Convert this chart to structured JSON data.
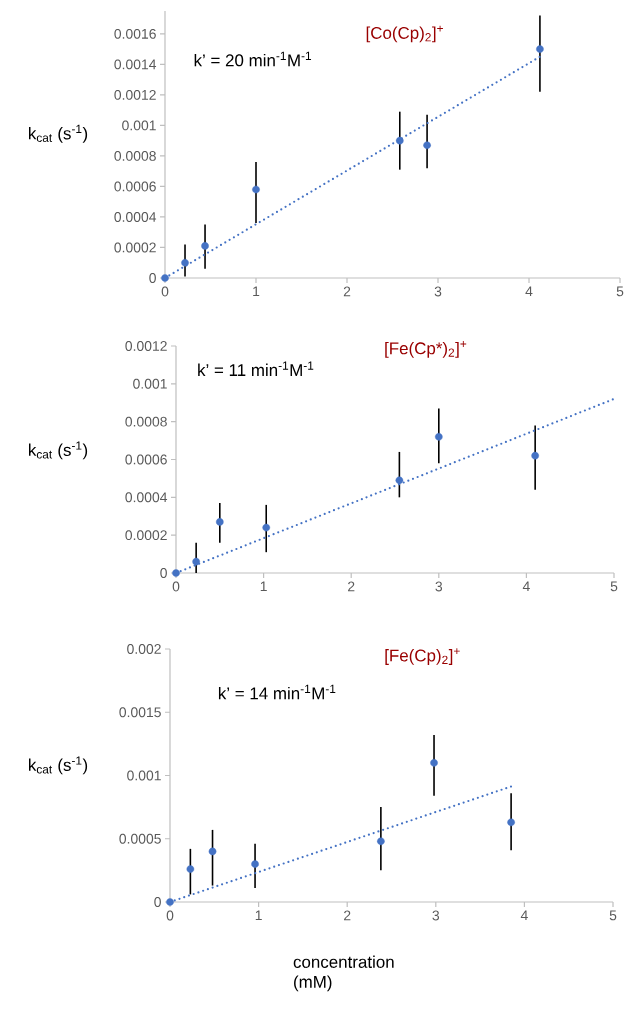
{
  "chart_data": [
    {
      "type": "scatter",
      "title": "[Co(Cp)$_{2}$]$^{+}$",
      "ylabel": "k$_{cat}$  (s$^{-1}$)",
      "annotations": [
        "k’ = 20 min$^{-1}$M$^{-1}$"
      ],
      "xlim": [
        0,
        5
      ],
      "xticks": [
        0,
        1,
        2,
        3,
        4,
        5
      ],
      "ylim": [
        0,
        0.00175
      ],
      "yticks": [
        0,
        0.0002,
        0.0004,
        0.0006,
        0.0008,
        0.001,
        0.0012,
        0.0014,
        0.0016
      ],
      "series": [
        {
          "color": "#4472c4",
          "marker": "circle",
          "x": [
            0,
            0.22,
            0.44,
            1.0,
            2.58,
            2.88,
            4.12
          ],
          "values": [
            0,
            0.0001,
            0.00021,
            0.00058,
            0.0009,
            0.00087,
            0.0015
          ],
          "errors": [
            null,
            [
              1e-05,
              0.00022
            ],
            [
              6e-05,
              0.00035
            ],
            [
              0.00036,
              0.00076
            ],
            [
              0.00071,
              0.00109
            ],
            [
              0.00072,
              0.00107
            ],
            [
              0.00122,
              0.00172
            ]
          ]
        },
        {
          "type": "line",
          "color": "#4472c4",
          "marker": "none",
          "line_style": "dotted",
          "x": [
            0,
            4.12
          ],
          "values": [
            0,
            0.00145
          ]
        }
      ]
    },
    {
      "type": "scatter",
      "title": "[Fe(Cp*)$_{2}$]$^{+}$",
      "ylabel": "k$_{cat}$  (s$^{-1}$)",
      "annotations": [
        "k’ = 11 min$^{-1}$M$^{-1}$"
      ],
      "xlim": [
        0,
        5
      ],
      "xticks": [
        0,
        1,
        2,
        3,
        4,
        5
      ],
      "ylim": [
        0,
        0.0012
      ],
      "yticks": [
        0,
        0.0002,
        0.0004,
        0.0006,
        0.0008,
        0.001,
        0.0012
      ],
      "series": [
        {
          "color": "#4472c4",
          "marker": "circle",
          "x": [
            0,
            0.23,
            0.5,
            1.03,
            2.55,
            3.0,
            4.1
          ],
          "values": [
            0,
            6e-05,
            0.00027,
            0.00024,
            0.00049,
            0.00072,
            0.00062
          ],
          "errors": [
            null,
            [
              0,
              0.00016
            ],
            [
              0.00016,
              0.00037
            ],
            [
              0.00011,
              0.00036
            ],
            [
              0.0004,
              0.00064
            ],
            [
              0.00058,
              0.00087
            ],
            [
              0.00044,
              0.00078
            ]
          ]
        },
        {
          "type": "line",
          "color": "#4472c4",
          "marker": "none",
          "line_style": "dotted",
          "x": [
            0,
            5
          ],
          "values": [
            0,
            0.00092
          ]
        }
      ]
    },
    {
      "type": "scatter",
      "title": "[Fe(Cp)$_{2}$]$^{+}$",
      "ylabel": "k$_{cat}$  (s$^{-1}$)",
      "xlabel": "concentration (mM)",
      "annotations": [
        "k’ = 14 min$^{-1}$M$^{-1}$"
      ],
      "xlim": [
        0,
        5
      ],
      "xticks": [
        0,
        1,
        2,
        3,
        4,
        5
      ],
      "ylim": [
        0,
        0.002
      ],
      "yticks": [
        0,
        0.0005,
        0.001,
        0.0015,
        0.002
      ],
      "series": [
        {
          "color": "#4472c4",
          "marker": "circle",
          "x": [
            0,
            0.23,
            0.48,
            0.96,
            2.38,
            2.98,
            3.85
          ],
          "values": [
            0,
            0.00026,
            0.0004,
            0.0003,
            0.00048,
            0.0011,
            0.00063
          ],
          "errors": [
            null,
            [
              6e-05,
              0.00042
            ],
            [
              0.00013,
              0.00057
            ],
            [
              0.00011,
              0.00046
            ],
            [
              0.00025,
              0.00075
            ],
            [
              0.00084,
              0.00132
            ],
            [
              0.00041,
              0.00086
            ]
          ]
        },
        {
          "type": "line",
          "color": "#4472c4",
          "marker": "none",
          "line_style": "dotted",
          "x": [
            0,
            3.88
          ],
          "values": [
            0,
            0.00092
          ]
        }
      ]
    }
  ]
}
